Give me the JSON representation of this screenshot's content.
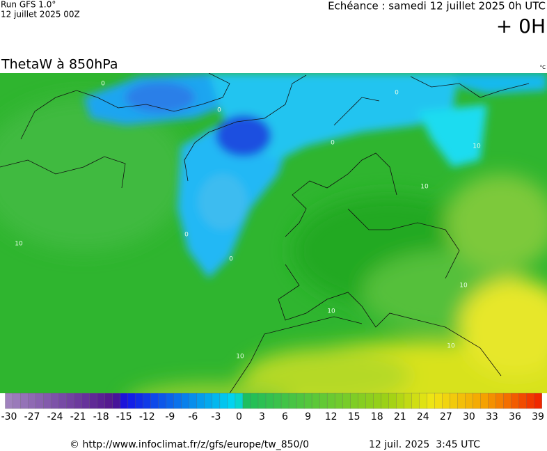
{
  "header": {
    "run": "Run GFS 1.0°",
    "run_date": "12 juillet 2025 00Z",
    "forecast_time": "Echéance : samedi 12 juillet 2025 0h UTC",
    "lead": "+ 0H"
  },
  "map": {
    "title": "ThetaW à 850hPa",
    "unit": "°C",
    "contour_labels": [
      "0",
      "0",
      "0",
      "0",
      "0",
      "0",
      "10",
      "10",
      "10",
      "10",
      "10",
      "10",
      "10"
    ]
  },
  "colorbar": {
    "ticks": [
      -30,
      -27,
      -24,
      -21,
      -18,
      -15,
      -12,
      -9,
      -6,
      -3,
      0,
      3,
      6,
      9,
      12,
      15,
      18,
      21,
      24,
      27,
      30,
      33,
      36,
      39
    ]
  },
  "footer": {
    "source": "© http://www.infoclimat.fr/z/gfs/europe/tw_850/0",
    "generated": "12 juil. 2025  3:45 UTC"
  }
}
